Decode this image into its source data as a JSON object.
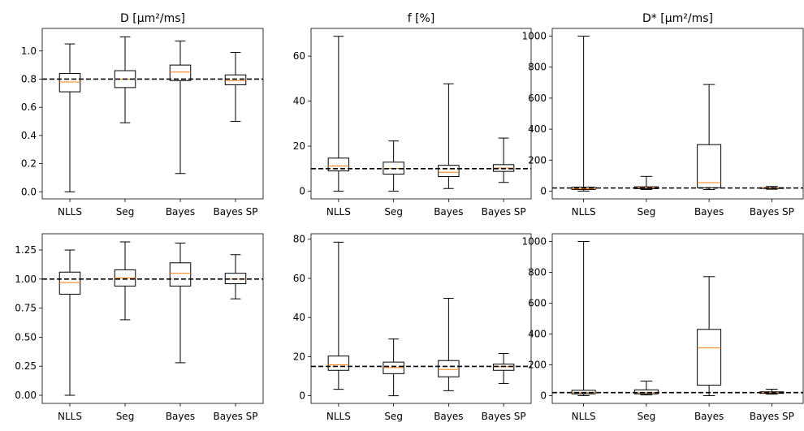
{
  "chart_data": [
    {
      "type": "box",
      "title": "D [μm²/ms]",
      "categories": [
        "NLLS",
        "Seg",
        "Bayes",
        "Bayes SP"
      ],
      "ylim": [
        -0.05,
        1.16
      ],
      "yticks": [
        "0.0",
        "0.2",
        "0.4",
        "0.6",
        "0.8",
        "1.0"
      ],
      "reference_line": 0.8,
      "boxes": [
        {
          "min": 0.0,
          "q1": 0.71,
          "median": 0.78,
          "q3": 0.84,
          "max": 1.05
        },
        {
          "min": 0.49,
          "q1": 0.74,
          "median": 0.8,
          "q3": 0.86,
          "max": 1.1
        },
        {
          "min": 0.13,
          "q1": 0.79,
          "median": 0.85,
          "q3": 0.9,
          "max": 1.07
        },
        {
          "min": 0.5,
          "q1": 0.76,
          "median": 0.79,
          "q3": 0.83,
          "max": 0.99
        }
      ]
    },
    {
      "type": "box",
      "title": "f [%]",
      "categories": [
        "NLLS",
        "Seg",
        "Bayes",
        "Bayes SP"
      ],
      "ylim": [
        -3.4,
        72.3
      ],
      "yticks": [
        "0",
        "20",
        "40",
        "60"
      ],
      "reference_line": 10,
      "boxes": [
        {
          "min": 0.0,
          "q1": 9.0,
          "median": 11.2,
          "q3": 14.7,
          "max": 68.8
        },
        {
          "min": 0.0,
          "q1": 7.6,
          "median": 10.1,
          "q3": 12.9,
          "max": 22.3
        },
        {
          "min": 1.2,
          "q1": 6.5,
          "median": 8.4,
          "q3": 11.5,
          "max": 47.7
        },
        {
          "min": 3.9,
          "q1": 8.8,
          "median": 10.3,
          "q3": 11.8,
          "max": 23.6
        }
      ]
    },
    {
      "type": "box",
      "title": "D* [μm²/ms]",
      "categories": [
        "NLLS",
        "Seg",
        "Bayes",
        "Bayes SP"
      ],
      "ylim": [
        -50,
        1050
      ],
      "yticks": [
        "0",
        "200",
        "400",
        "600",
        "800",
        "1000"
      ],
      "reference_line": 20,
      "boxes": [
        {
          "min": 0,
          "q1": 10,
          "median": 15,
          "q3": 25,
          "max": 1000
        },
        {
          "min": 10,
          "q1": 16,
          "median": 22,
          "q3": 28,
          "max": 95
        },
        {
          "min": 10,
          "q1": 22,
          "median": 55,
          "q3": 300,
          "max": 688
        },
        {
          "min": 12,
          "q1": 17,
          "median": 20,
          "q3": 22,
          "max": 30
        }
      ]
    },
    {
      "type": "box",
      "title": "",
      "categories": [
        "NLLS",
        "Seg",
        "Bayes",
        "Bayes SP"
      ],
      "ylim": [
        -0.07,
        1.39
      ],
      "yticks": [
        "0.00",
        "0.25",
        "0.50",
        "0.75",
        "1.00",
        "1.25"
      ],
      "reference_line": 1.0,
      "boxes": [
        {
          "min": 0.0,
          "q1": 0.87,
          "median": 0.97,
          "q3": 1.06,
          "max": 1.25
        },
        {
          "min": 0.65,
          "q1": 0.94,
          "median": 1.01,
          "q3": 1.08,
          "max": 1.32
        },
        {
          "min": 0.28,
          "q1": 0.94,
          "median": 1.05,
          "q3": 1.14,
          "max": 1.31
        },
        {
          "min": 0.83,
          "q1": 0.96,
          "median": 1.0,
          "q3": 1.05,
          "max": 1.21
        }
      ]
    },
    {
      "type": "box",
      "title": "",
      "categories": [
        "NLLS",
        "Seg",
        "Bayes",
        "Bayes SP"
      ],
      "ylim": [
        -3.9,
        82.8
      ],
      "yticks": [
        "0",
        "20",
        "40",
        "60",
        "80"
      ],
      "reference_line": 15,
      "boxes": [
        {
          "min": 3.3,
          "q1": 13.0,
          "median": 15.8,
          "q3": 20.3,
          "max": 78.5
        },
        {
          "min": 0.0,
          "q1": 11.3,
          "median": 14.4,
          "q3": 17.2,
          "max": 29.0
        },
        {
          "min": 2.6,
          "q1": 9.7,
          "median": 13.4,
          "q3": 18.0,
          "max": 49.8
        },
        {
          "min": 6.3,
          "q1": 13.0,
          "median": 14.8,
          "q3": 16.2,
          "max": 21.6
        }
      ]
    },
    {
      "type": "box",
      "title": "",
      "categories": [
        "NLLS",
        "Seg",
        "Bayes",
        "Bayes SP"
      ],
      "ylim": [
        -50,
        1050
      ],
      "yticks": [
        "0",
        "200",
        "400",
        "600",
        "800",
        "1000"
      ],
      "reference_line": 20,
      "boxes": [
        {
          "min": 0,
          "q1": 12,
          "median": 20,
          "q3": 35,
          "max": 1000
        },
        {
          "min": 5,
          "q1": 12,
          "median": 20,
          "q3": 38,
          "max": 95
        },
        {
          "min": 0,
          "q1": 68,
          "median": 310,
          "q3": 430,
          "max": 772
        },
        {
          "min": 10,
          "q1": 15,
          "median": 20,
          "q3": 25,
          "max": 42
        }
      ]
    }
  ]
}
